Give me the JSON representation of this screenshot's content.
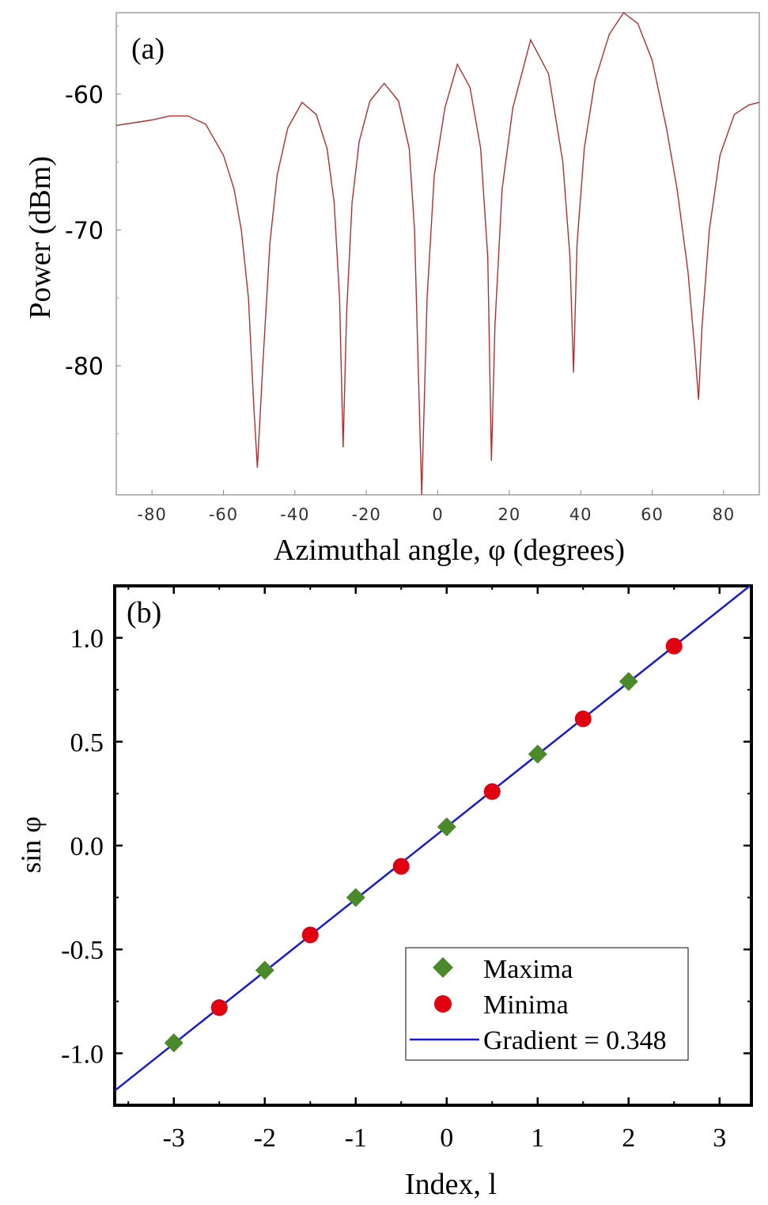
{
  "chart_data": [
    {
      "panel_label": "(a)",
      "type": "line",
      "xlabel": "Azimuthal angle, φ (degrees)",
      "ylabel": "Power (dBm)",
      "xlim": [
        -90,
        90
      ],
      "ylim": [
        -89.5,
        -54
      ],
      "xticks": [
        -80,
        -60,
        -40,
        -20,
        0,
        20,
        40,
        60,
        80
      ],
      "xtick_labels": [
        "-80",
        "-60",
        "-40",
        "-20",
        "0",
        "20",
        "40",
        "60",
        "80"
      ],
      "yticks": [
        -60,
        -70,
        -80
      ],
      "ytick_labels": [
        "-60",
        "-70",
        "-80"
      ],
      "line_color": "#b03030",
      "series": [
        {
          "name": "Power",
          "x": [
            -90,
            -85,
            -80,
            -75,
            -70,
            -65,
            -60,
            -57,
            -55,
            -53,
            -51.5,
            -50.5,
            -49,
            -47,
            -45,
            -42,
            -38,
            -34,
            -31,
            -29,
            -27.5,
            -26.5,
            -25.5,
            -24,
            -22,
            -19,
            -15,
            -11,
            -8,
            -6.5,
            -5.5,
            -4.5,
            -3,
            -1,
            2,
            5.5,
            9,
            12,
            14,
            15,
            16,
            18,
            21,
            26,
            31,
            35,
            37,
            38,
            39,
            41,
            44,
            48,
            52,
            56,
            60,
            64,
            67,
            70,
            72,
            73,
            74,
            76,
            79,
            83,
            87,
            90
          ],
          "y": [
            -62.3,
            -62.1,
            -61.9,
            -61.6,
            -61.6,
            -62.2,
            -64.5,
            -67,
            -70,
            -75,
            -83,
            -87.5,
            -80,
            -71,
            -66,
            -62.5,
            -60.6,
            -61.5,
            -64,
            -68,
            -75,
            -86,
            -76,
            -68,
            -63.5,
            -60.5,
            -59.2,
            -60.5,
            -64,
            -70,
            -80,
            -89.5,
            -75,
            -66,
            -61,
            -57.8,
            -59.5,
            -64,
            -72,
            -87,
            -77,
            -67,
            -61,
            -56,
            -58.5,
            -65,
            -72,
            -80.5,
            -71,
            -64,
            -59,
            -55.6,
            -54,
            -54.8,
            -57.5,
            -62.5,
            -67,
            -73,
            -79,
            -82.5,
            -77,
            -70,
            -64.5,
            -61.5,
            -60.8,
            -60.6
          ]
        }
      ]
    },
    {
      "panel_label": "(b)",
      "type": "scatter",
      "xlabel": "Index, l",
      "ylabel": "sin φ",
      "xlim": [
        -3.65,
        3.35
      ],
      "ylim": [
        -1.25,
        1.25
      ],
      "xticks": [
        -3,
        -2,
        -1,
        0,
        1,
        2,
        3
      ],
      "xtick_labels": [
        "-3",
        "-2",
        "-1",
        "0",
        "1",
        "2",
        "3"
      ],
      "yticks": [
        1.0,
        0.5,
        0.0,
        -0.5,
        -1.0
      ],
      "ytick_labels": [
        "1.0",
        "0.5",
        "0.0",
        "-0.5",
        "-1.0"
      ],
      "series": [
        {
          "name": "Maxima",
          "marker": "diamond",
          "color": "#4a8a2a",
          "x": [
            -3,
            -2,
            -1,
            0,
            1,
            2
          ],
          "y": [
            -0.95,
            -0.6,
            -0.25,
            0.09,
            0.44,
            0.79
          ]
        },
        {
          "name": "Minima",
          "marker": "circle",
          "color": "#e00010",
          "x": [
            -2.5,
            -1.5,
            -0.5,
            0.5,
            1.5,
            2.5
          ],
          "y": [
            -0.78,
            -0.43,
            -0.1,
            0.26,
            0.61,
            0.96
          ]
        },
        {
          "name": "Gradient = 0.348",
          "marker": "line",
          "color": "#1a1ad0",
          "slope": 0.348,
          "intercept": 0.09,
          "x_range": [
            -3.65,
            3.35
          ]
        }
      ],
      "legend": {
        "items": [
          "Maxima",
          "Minima",
          "Gradient = 0.348"
        ],
        "placement": "bottom-right"
      }
    }
  ]
}
